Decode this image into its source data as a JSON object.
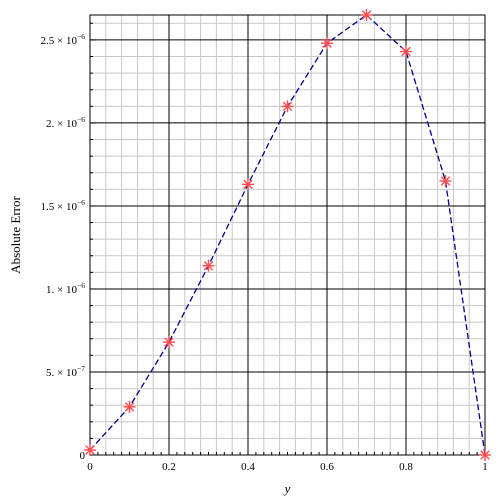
{
  "chart_data": {
    "type": "line",
    "xlabel": "y",
    "ylabel": "Absolute Error",
    "xlim": [
      0,
      1
    ],
    "ylim": [
      0,
      2.65e-06
    ],
    "grid": true,
    "x_ticks": [
      {
        "value": 0,
        "label": "0"
      },
      {
        "value": 0.2,
        "label": "0.2"
      },
      {
        "value": 0.4,
        "label": "0.4"
      },
      {
        "value": 0.6,
        "label": "0.6"
      },
      {
        "value": 0.8,
        "label": "0.8"
      },
      {
        "value": 1,
        "label": "1"
      }
    ],
    "y_ticks": [
      {
        "value": 0,
        "mantissa": "0",
        "exponent": ""
      },
      {
        "value": 5e-07,
        "mantissa": "5. × 10",
        "exponent": "−7"
      },
      {
        "value": 1e-06,
        "mantissa": "1. × 10",
        "exponent": "−6"
      },
      {
        "value": 1.5e-06,
        "mantissa": "1.5 × 10",
        "exponent": "−6"
      },
      {
        "value": 2e-06,
        "mantissa": "2. × 10",
        "exponent": "−6"
      },
      {
        "value": 2.5e-06,
        "mantissa": "2.5 × 10",
        "exponent": "−6"
      }
    ],
    "series": [
      {
        "style": "dashed-line",
        "color": "#00008b",
        "x": [
          0,
          0.1,
          0.2,
          0.3,
          0.4,
          0.5,
          0.6,
          0.7,
          0.8,
          0.9,
          1.0
        ],
        "y": [
          3e-08,
          2.9e-07,
          6.8e-07,
          1.14e-06,
          1.63e-06,
          2.1e-06,
          2.48e-06,
          2.65e-06,
          2.43e-06,
          1.65e-06,
          0
        ]
      },
      {
        "style": "star-markers",
        "color": "#ff4d4d",
        "x": [
          0,
          0.1,
          0.2,
          0.3,
          0.4,
          0.5,
          0.6,
          0.7,
          0.8,
          0.9,
          1.0
        ],
        "y": [
          3e-08,
          2.9e-07,
          6.8e-07,
          1.14e-06,
          1.63e-06,
          2.1e-06,
          2.48e-06,
          2.65e-06,
          2.43e-06,
          1.65e-06,
          0
        ]
      }
    ]
  }
}
